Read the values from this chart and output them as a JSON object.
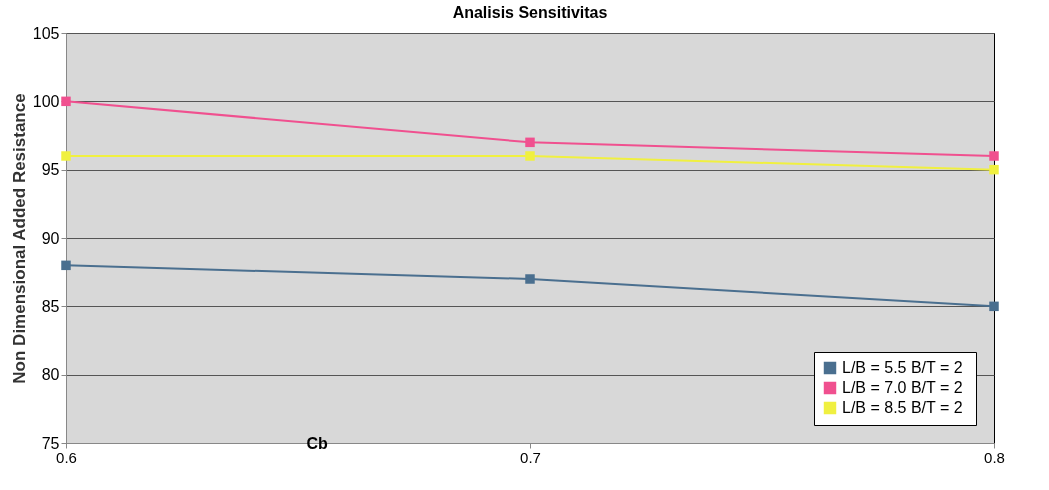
{
  "chart_data": {
    "type": "line",
    "title": "Analisis Sensitivitas",
    "xlabel": "Cb",
    "ylabel": "Non Dimensional Added Resistance",
    "x": [
      0.6,
      0.7,
      0.8
    ],
    "series": [
      {
        "name": "L/B = 5.5  B/T = 2",
        "color": "#4a6f8f",
        "values": [
          88,
          87,
          85
        ]
      },
      {
        "name": "L/B = 7.0 B/T = 2",
        "color": "#f0508f",
        "values": [
          100,
          97,
          96
        ]
      },
      {
        "name": "L/B = 8.5 B/T = 2",
        "color": "#f0f040",
        "values": [
          96,
          96,
          95
        ]
      }
    ],
    "xlim": [
      0.6,
      0.8
    ],
    "xticks": [
      0.6,
      0.7,
      0.8
    ],
    "ylim": [
      75,
      105
    ],
    "yticks": [
      75,
      80,
      85,
      90,
      95,
      100,
      105
    ],
    "grid": "y",
    "legend": "bottom right",
    "marker": "square",
    "line_style": "solid"
  }
}
